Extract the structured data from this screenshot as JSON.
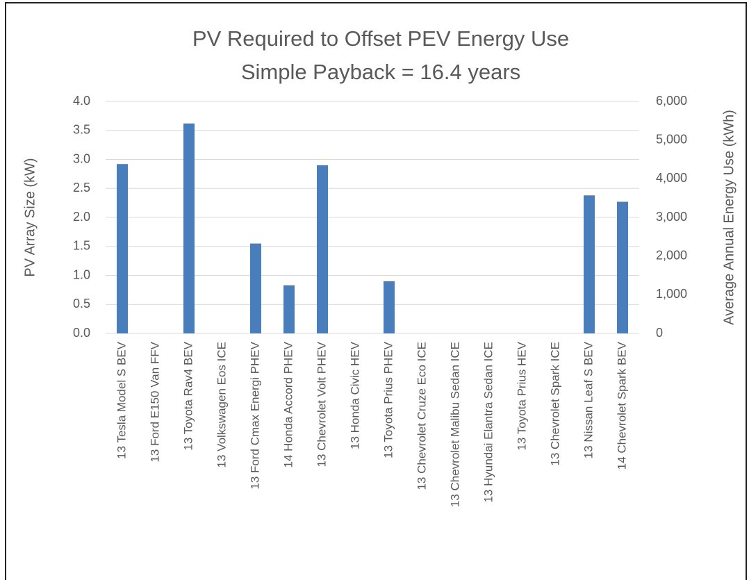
{
  "chart_data": {
    "type": "bar",
    "title": "PV Required to Offset PEV Energy Use",
    "subtitle": "Simple Payback = 16.4 years",
    "y_label": "PV Array Size (kW)",
    "y2_label": "Average Annual Energy Use (kWh)",
    "categories": [
      "13 Tesla Model S BEV",
      "13 Ford E150 Van FFV",
      "13 Toyota Rav4 BEV",
      "13 Volkswagen Eos ICE",
      "13 Ford Cmax Energi PHEV",
      "14 Honda Accord PHEV",
      "13 Chevrolet Volt PHEV",
      "13 Honda Civic HEV",
      "13 Toyota Prius PHEV",
      "13 Chevrolet Cruze Eco ICE",
      "13 Chevrolet Malibu Sedan ICE",
      "13 Hyundai Elantra Sedan ICE",
      "13 Toyota Prius HEV",
      "13 Chevrolet Spark ICE",
      "13 Nissan Leaf S BEV",
      "14 Chevrolet Spark BEV"
    ],
    "values": [
      2.92,
      0,
      3.62,
      0,
      1.55,
      0.83,
      2.9,
      0,
      0.9,
      0,
      0,
      0,
      0,
      0,
      2.38,
      2.27
    ],
    "color": "#4a7ebb",
    "ylim": [
      0,
      4
    ],
    "yticks": [
      {
        "value": 0,
        "label": "0.0"
      },
      {
        "value": 0.5,
        "label": "0.5"
      },
      {
        "value": 1,
        "label": "1.0"
      },
      {
        "value": 1.5,
        "label": "1.5"
      },
      {
        "value": 2,
        "label": "2.0"
      },
      {
        "value": 2.5,
        "label": "2.5"
      },
      {
        "value": 3,
        "label": "3.0"
      },
      {
        "value": 3.5,
        "label": "3.5"
      },
      {
        "value": 4,
        "label": "4.0"
      }
    ],
    "y2lim": [
      0,
      6000
    ],
    "y2ticks": [
      0,
      {
        "value": 1000,
        "label": "1,000"
      },
      {
        "value": 2000,
        "label": "2,000"
      },
      {
        "value": 3000,
        "label": "3,000"
      },
      {
        "value": 4000,
        "label": "4,000"
      },
      {
        "value": 5000,
        "label": "5,000"
      },
      {
        "value": 6000,
        "label": "6,000"
      }
    ],
    "grid": true
  }
}
